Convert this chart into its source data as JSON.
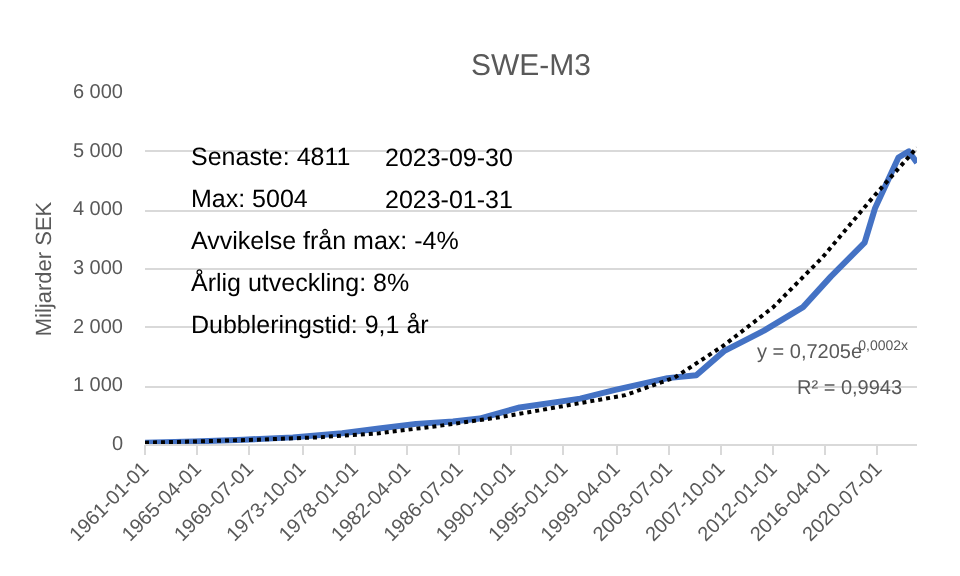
{
  "chart_data": {
    "type": "line",
    "title": "SWE-M3",
    "ylabel": "Miljarder SEK",
    "x": [
      "1961-01",
      "1965-01",
      "1969-01",
      "1973-01",
      "1977-01",
      "1980-01",
      "1983-01",
      "1986-01",
      "1988-03",
      "1991-06",
      "1996-05",
      "1999-03",
      "2003-06",
      "2005-10",
      "2008-01",
      "2011-04",
      "2014-06",
      "2016-09",
      "2019-06",
      "2020-04",
      "2022-03",
      "2023-01",
      "2023-09"
    ],
    "series": [
      {
        "color": "#4472c4",
        "values": [
          40,
          60,
          90,
          130,
          200,
          280,
          360,
          400,
          450,
          640,
          790,
          940,
          1140,
          1190,
          1600,
          1950,
          2350,
          2870,
          3450,
          4030,
          4900,
          5004,
          4811
        ]
      },
      {
        "type": "line",
        "color": "#000000",
        "line_style": "dotted",
        "x": [
          "1961-01",
          "1965-01",
          "1970-01",
          "1975-01",
          "1980-01",
          "1985-01",
          "1990-01",
          "2000-01",
          "2004-01",
          "2008-01",
          "2012-01",
          "2016-01",
          "2020-01",
          "2023-09"
        ],
        "values": [
          40,
          60,
          90,
          130,
          200,
          330,
          480,
          850,
          1150,
          1700,
          2350,
          3200,
          4200,
          5070
        ]
      }
    ],
    "xlim": [
      "1961-01",
      "2023-09"
    ],
    "xticks": [
      "1961-01-01",
      "1965-04-01",
      "1969-07-01",
      "1973-10-01",
      "1978-01-01",
      "1982-04-01",
      "1986-07-01",
      "1990-10-01",
      "1995-01-01",
      "1999-04-01",
      "2003-07-01",
      "2007-10-01",
      "2012-01-01",
      "2016-04-01",
      "2020-07-01"
    ],
    "ylim": [
      0,
      6000
    ],
    "yticks": [
      0,
      {
        "value": 1000,
        "label": "1 000"
      },
      {
        "value": 2000,
        "label": "2 000"
      },
      {
        "value": 3000,
        "label": "3 000"
      },
      {
        "value": 4000,
        "label": "4 000"
      },
      {
        "value": 5000,
        "label": "5 000"
      },
      {
        "value": 6000,
        "label": "6 000"
      }
    ],
    "grid": "y",
    "marker": "none",
    "line_style": "solid",
    "annotations": [
      "Senaste: 4811",
      "2023-09-30",
      "Max: 5004",
      "2023-01-31",
      "Avvikelse från max: -4%",
      "Årlig utveckling: 8%",
      "Dubbleringstid: 9,1 år",
      "y = 0,7205e$^{0,0002x}$",
      "R² = 0,9943"
    ]
  }
}
